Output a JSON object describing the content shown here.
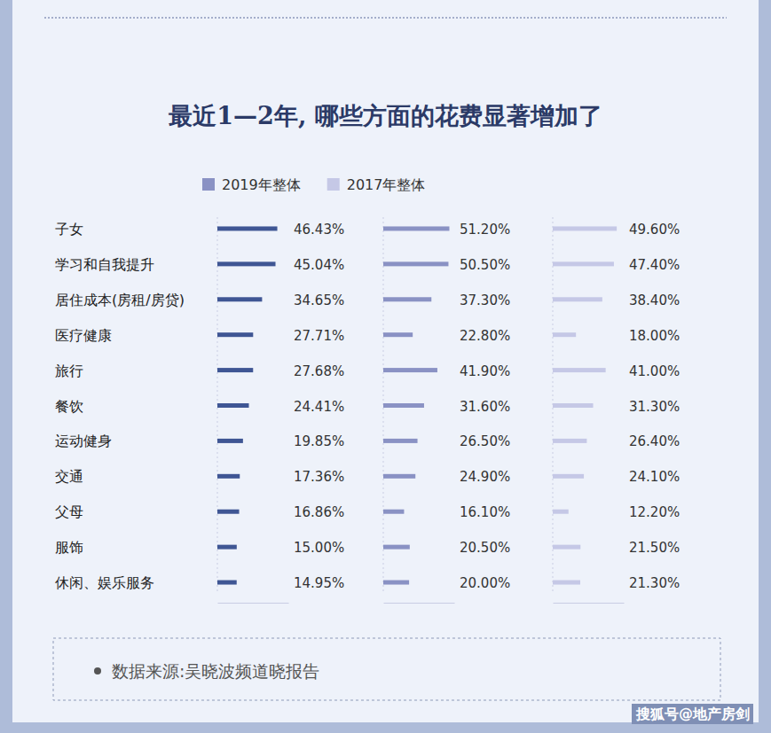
{
  "chart_data": {
    "type": "bar",
    "orientation": "horizontal",
    "title": "最近1—2年, 哪些方面的花费显著增加了",
    "categories": [
      "子女",
      "学习和自我提升",
      "居住成本(房租/房贷)",
      "医疗健康",
      "旅行",
      "餐饮",
      "运动健身",
      "交通",
      "父母",
      "服饰",
      "休闲、娱乐服务"
    ],
    "series": [
      {
        "color": "#3f5694",
        "values": [
          46.43,
          45.04,
          34.65,
          27.71,
          27.68,
          24.41,
          19.85,
          17.36,
          16.86,
          15.0,
          14.95
        ],
        "value_labels": [
          "46.43%",
          "45.04%",
          "34.65%",
          "27.71%",
          "27.68%",
          "24.41%",
          "19.85%",
          "17.36%",
          "16.86%",
          "15.00%",
          "14.95%"
        ]
      },
      {
        "name": "2019年整体",
        "color": "#8a92c4",
        "values": [
          51.2,
          50.5,
          37.3,
          22.8,
          41.9,
          31.6,
          26.5,
          24.9,
          16.1,
          20.5,
          20.0
        ],
        "value_labels": [
          "51.20%",
          "50.50%",
          "37.30%",
          "22.80%",
          "41.90%",
          "31.60%",
          "26.50%",
          "24.90%",
          "16.10%",
          "20.50%",
          "20.00%"
        ]
      },
      {
        "name": "2017年整体",
        "color": "#c5c8e6",
        "values": [
          49.6,
          47.4,
          38.4,
          18.0,
          41.0,
          31.3,
          26.4,
          24.1,
          12.2,
          21.5,
          21.3
        ],
        "value_labels": [
          "49.60%",
          "47.40%",
          "38.40%",
          "18.00%",
          "41.00%",
          "31.30%",
          "26.40%",
          "24.10%",
          "12.20%",
          "21.50%",
          "21.30%"
        ]
      }
    ],
    "xlim": [
      0,
      55
    ],
    "tick_labels": false,
    "data_labels": true,
    "legend": "top",
    "source": "数据来源:吴晓波频道晓报告",
    "watermark": "搜狐号@地产房剑"
  }
}
